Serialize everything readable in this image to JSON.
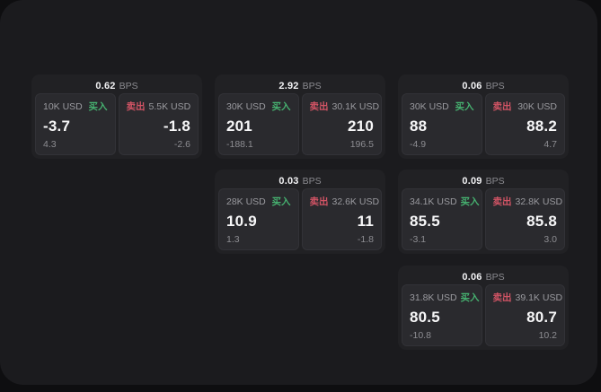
{
  "labels": {
    "bps": "BPS",
    "buy": "买入",
    "sell": "卖出"
  },
  "colors": {
    "background": "#0e0e10",
    "surface": "#1b1b1e",
    "card": "#212124",
    "panel": "#2a2a2e",
    "buy_green": "#46b170",
    "sell_red": "#d25465"
  },
  "cards": [
    {
      "bps": "0.62",
      "buy": {
        "amount": "10K USD",
        "price": "-3.7",
        "delta": "4.3"
      },
      "sell": {
        "amount": "5.5K USD",
        "price": "-1.8",
        "delta": "-2.6"
      }
    },
    {
      "bps": "2.92",
      "buy": {
        "amount": "30K USD",
        "price": "201",
        "delta": "-188.1"
      },
      "sell": {
        "amount": "30.1K USD",
        "price": "210",
        "delta": "196.5"
      }
    },
    {
      "bps": "0.06",
      "buy": {
        "amount": "30K USD",
        "price": "88",
        "delta": "-4.9"
      },
      "sell": {
        "amount": "30K USD",
        "price": "88.2",
        "delta": "4.7"
      }
    },
    {
      "bps": "0.03",
      "buy": {
        "amount": "28K USD",
        "price": "10.9",
        "delta": "1.3"
      },
      "sell": {
        "amount": "32.6K USD",
        "price": "11",
        "delta": "-1.8"
      }
    },
    {
      "bps": "0.09",
      "buy": {
        "amount": "34.1K USD",
        "price": "85.5",
        "delta": "-3.1"
      },
      "sell": {
        "amount": "32.8K USD",
        "price": "85.8",
        "delta": "3.0"
      }
    },
    {
      "bps": "0.06",
      "buy": {
        "amount": "31.8K USD",
        "price": "80.5",
        "delta": "-10.8"
      },
      "sell": {
        "amount": "39.1K USD",
        "price": "80.7",
        "delta": "10.2"
      }
    }
  ]
}
